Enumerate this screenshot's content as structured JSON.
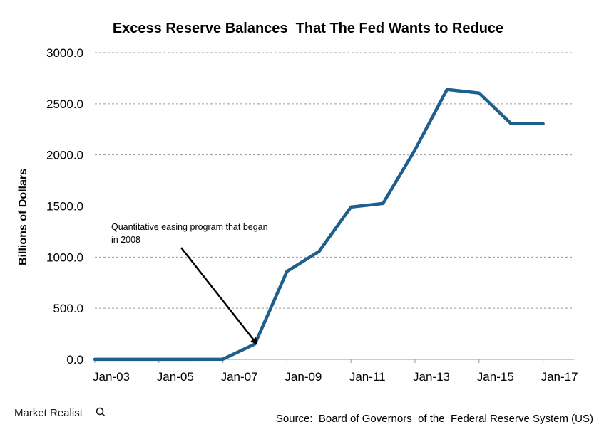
{
  "chart_data": {
    "type": "line",
    "title": "Excess Reserve Balances  That The Fed Wants to Reduce",
    "ylabel": "Billions of Dollars",
    "xlabel": "",
    "ylim": [
      0,
      3000
    ],
    "yticks": [
      "0.0",
      "500.0",
      "1000.0",
      "1500.0",
      "2000.0",
      "2500.0",
      "3000.0"
    ],
    "x_tick_labels": [
      "Jan-03",
      "Jan-05",
      "Jan-07",
      "Jan-09",
      "Jan-11",
      "Jan-13",
      "Jan-15",
      "Jan-17"
    ],
    "grid": "horizontal dashed",
    "series": [
      {
        "color": "#1f5f8b",
        "x": [
          "Jan-03",
          "Jan-04",
          "Jan-05",
          "Jan-06",
          "Jan-07",
          "Jan-08",
          "Jan-09",
          "Jan-10",
          "Jan-11",
          "Jan-12",
          "Jan-13",
          "Jan-14",
          "Jan-15",
          "Jan-16",
          "Jan-17"
        ],
        "values": [
          1,
          1,
          1,
          1,
          2,
          150,
          860,
          1055,
          1490,
          1525,
          2050,
          2640,
          2605,
          2305,
          2305
        ]
      }
    ],
    "annotation": {
      "text_lines": [
        "Quantitative easing program that began",
        "in 2008"
      ],
      "points_to": "Jan-08"
    }
  },
  "source": "Source:  Board of Governors  of the  Federal Reserve System (US)",
  "brand": {
    "name": "Market Realist",
    "icon": "magnifier-q-icon"
  }
}
